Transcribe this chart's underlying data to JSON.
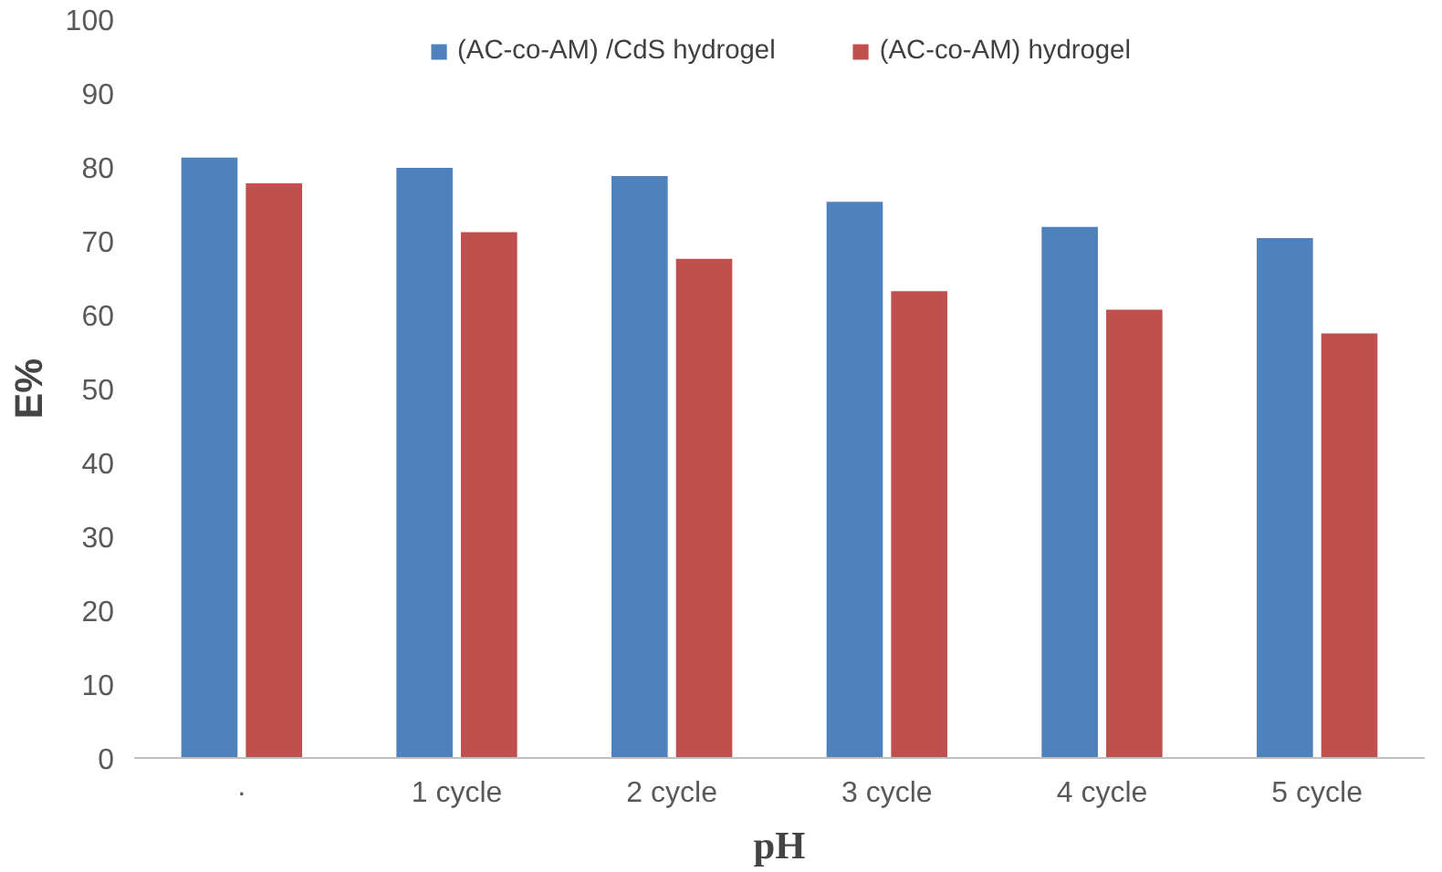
{
  "chart_data": {
    "type": "bar",
    "xlabel": "pH",
    "ylabel": "E%",
    "categories": [
      "·",
      "1 cycle",
      "2 cycle",
      "3 cycle",
      "4 cycle",
      "5 cycle"
    ],
    "series": [
      {
        "name": "(AC-co-AM) /CdS hydrogel",
        "color": "#4f81bd",
        "values": [
          81.4,
          80.0,
          78.9,
          75.4,
          72.0,
          70.5
        ]
      },
      {
        "name": "(AC-co-AM) hydrogel",
        "color": "#c0504d",
        "values": [
          77.9,
          71.3,
          67.7,
          63.3,
          60.8,
          57.6
        ]
      }
    ],
    "ylim": [
      0,
      100
    ],
    "yticks": [
      0,
      10,
      20,
      30,
      40,
      50,
      60,
      70,
      80,
      90,
      100
    ],
    "grid": false,
    "legend": "top"
  }
}
